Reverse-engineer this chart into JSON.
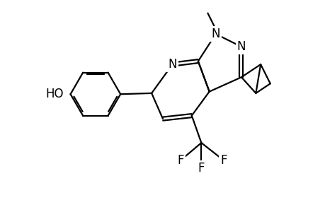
{
  "background_color": "#ffffff",
  "line_color": "#000000",
  "line_width": 1.6,
  "font_size": 12,
  "fig_width": 4.6,
  "fig_height": 3.0,
  "dpi": 100,
  "xlim": [
    0,
    10
  ],
  "ylim": [
    0,
    6.5
  ]
}
